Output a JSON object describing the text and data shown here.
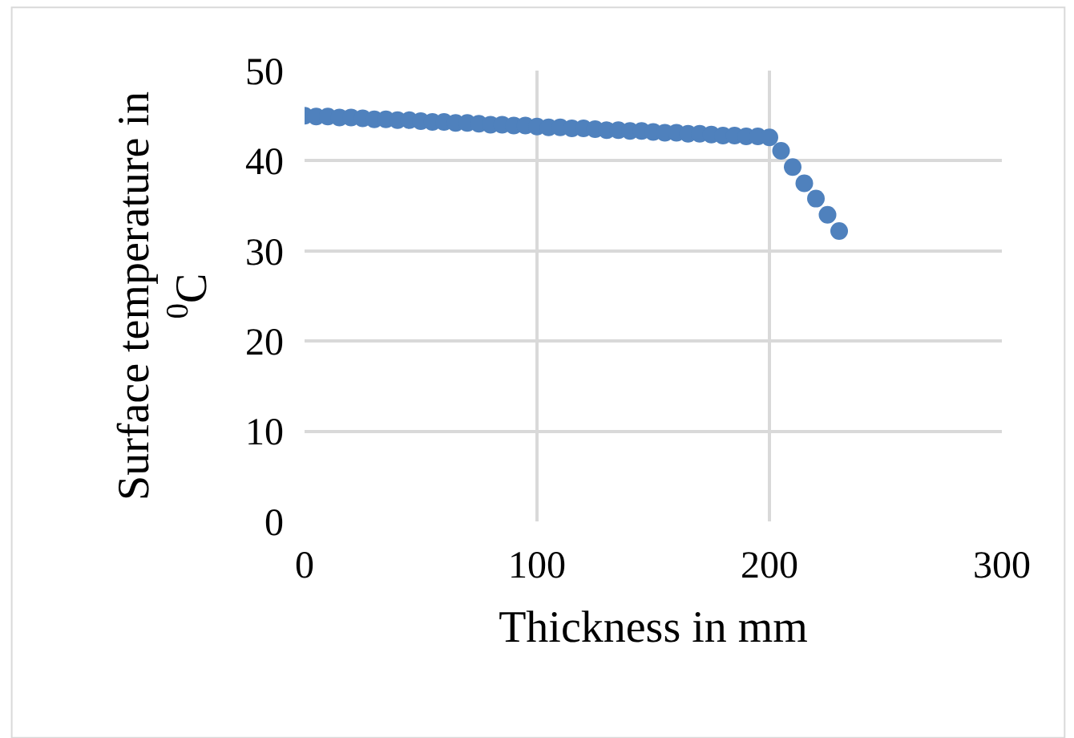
{
  "chart_data": {
    "type": "scatter",
    "xlabel": "Thickness in mm",
    "ylabel": "Surface temperature in $^{0}$C",
    "x": [
      0,
      5,
      10,
      15,
      20,
      25,
      30,
      35,
      40,
      45,
      50,
      55,
      60,
      65,
      70,
      75,
      80,
      85,
      90,
      95,
      100,
      105,
      110,
      115,
      120,
      125,
      130,
      135,
      140,
      145,
      150,
      155,
      160,
      165,
      170,
      175,
      180,
      185,
      190,
      195,
      200,
      205,
      210,
      215,
      220,
      225,
      230
    ],
    "series": [
      {
        "color": "#4f81bd",
        "values": [
          45,
          44.9,
          44.9,
          44.8,
          44.8,
          44.7,
          44.6,
          44.6,
          44.5,
          44.5,
          44.4,
          44.3,
          44.3,
          44.2,
          44.2,
          44.1,
          44,
          44,
          43.9,
          43.9,
          43.8,
          43.7,
          43.7,
          43.6,
          43.6,
          43.5,
          43.4,
          43.4,
          43.3,
          43.3,
          43.2,
          43.1,
          43.1,
          43,
          43,
          42.9,
          42.8,
          42.8,
          42.7,
          42.7,
          42.6,
          41.1,
          39.3,
          37.5,
          35.8,
          34,
          32.2
        ]
      }
    ],
    "xlim": [
      0,
      300
    ],
    "xticks": [
      0,
      100,
      200,
      300
    ],
    "ylim": [
      0,
      50
    ],
    "yticks": [
      0,
      10,
      20,
      30,
      40,
      50
    ],
    "grid": true,
    "marker": "circle"
  }
}
